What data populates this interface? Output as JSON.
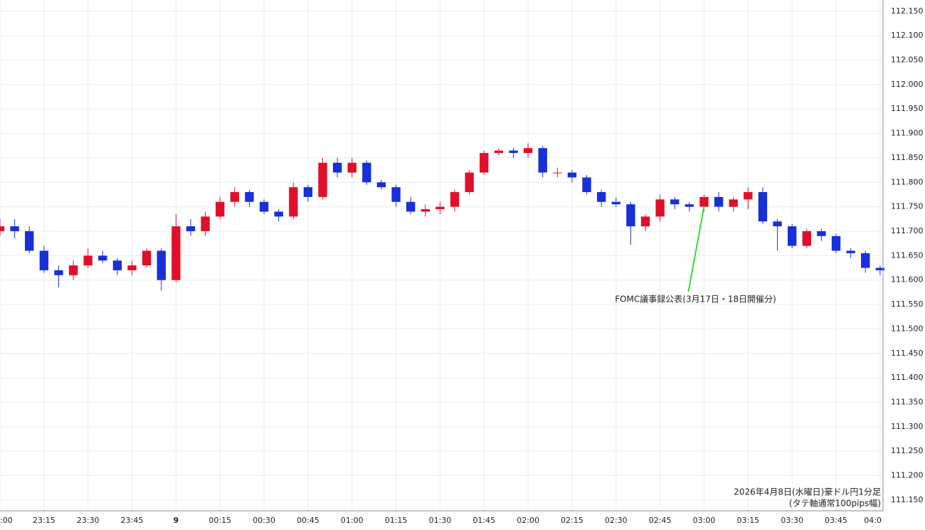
{
  "chart_data": {
    "type": "candlestick",
    "annotation": "FOMC議事録公表(3月17日・18日開催分)",
    "annotation_x": "03:00",
    "caption": [
      "2026年4月8日(水曜日)豪ドル円1分足",
      "(タテ軸通常100pips幅)"
    ],
    "up_color": "#e0102a",
    "down_color": "#1730d8",
    "annotation_color": "#33dd33",
    "grid": true,
    "x": [
      "23:00",
      "23:05",
      "23:10",
      "23:15",
      "23:20",
      "23:25",
      "23:30",
      "23:35",
      "23:40",
      "23:45",
      "23:50",
      "23:55",
      "00:00",
      "00:05",
      "00:10",
      "00:15",
      "00:20",
      "00:25",
      "00:30",
      "00:35",
      "00:40",
      "00:45",
      "00:50",
      "00:55",
      "01:00",
      "01:05",
      "01:10",
      "01:15",
      "01:20",
      "01:25",
      "01:30",
      "01:35",
      "01:40",
      "01:45",
      "01:50",
      "01:55",
      "02:00",
      "02:05",
      "02:10",
      "02:15",
      "02:20",
      "02:25",
      "02:30",
      "02:35",
      "02:40",
      "02:45",
      "02:50",
      "02:55",
      "03:00",
      "03:05",
      "03:10",
      "03:15",
      "03:20",
      "03:25",
      "03:30",
      "03:35",
      "03:40",
      "03:45",
      "03:50",
      "03:55",
      "04:00"
    ],
    "open": [
      111.7,
      111.71,
      111.7,
      111.66,
      111.62,
      111.61,
      111.63,
      111.65,
      111.64,
      111.62,
      111.63,
      111.66,
      111.6,
      111.71,
      111.7,
      111.73,
      111.76,
      111.78,
      111.76,
      111.74,
      111.73,
      111.79,
      111.77,
      111.84,
      111.82,
      111.84,
      111.8,
      111.79,
      111.76,
      111.74,
      111.745,
      111.75,
      111.78,
      111.82,
      111.86,
      111.865,
      111.86,
      111.87,
      111.82,
      111.82,
      111.81,
      111.78,
      111.76,
      111.755,
      111.71,
      111.73,
      111.765,
      111.755,
      111.75,
      111.77,
      111.75,
      111.765,
      111.78,
      111.72,
      111.71,
      111.67,
      111.7,
      111.69,
      111.66,
      111.655,
      111.625
    ],
    "high": [
      111.725,
      111.725,
      111.71,
      111.67,
      111.63,
      111.64,
      111.665,
      111.66,
      111.645,
      111.64,
      111.665,
      111.665,
      111.735,
      111.725,
      111.74,
      111.77,
      111.79,
      111.785,
      111.765,
      111.745,
      111.8,
      111.795,
      111.85,
      111.85,
      111.85,
      111.845,
      111.805,
      111.795,
      111.77,
      111.755,
      111.76,
      111.785,
      111.825,
      111.865,
      111.87,
      111.87,
      111.88,
      111.875,
      111.83,
      111.825,
      111.815,
      111.785,
      111.77,
      111.76,
      111.735,
      111.775,
      111.77,
      111.76,
      111.775,
      111.78,
      111.77,
      111.79,
      111.79,
      111.725,
      111.715,
      111.705,
      111.705,
      111.695,
      111.665,
      111.66,
      111.63
    ],
    "low": [
      111.69,
      111.685,
      111.655,
      111.615,
      111.585,
      111.6,
      111.625,
      111.635,
      111.61,
      111.61,
      111.625,
      111.578,
      111.595,
      111.69,
      111.69,
      111.725,
      111.75,
      111.75,
      111.735,
      111.72,
      111.725,
      111.76,
      111.765,
      111.81,
      111.81,
      111.795,
      111.785,
      111.75,
      111.735,
      111.73,
      111.735,
      111.74,
      111.775,
      111.815,
      111.855,
      111.85,
      111.85,
      111.81,
      111.81,
      111.8,
      111.775,
      111.75,
      111.75,
      111.672,
      111.7,
      111.72,
      111.745,
      111.74,
      111.74,
      111.74,
      111.74,
      111.745,
      111.715,
      111.66,
      111.665,
      111.665,
      111.68,
      111.655,
      111.645,
      111.615,
      111.61
    ],
    "close": [
      111.71,
      111.7,
      111.66,
      111.62,
      111.61,
      111.63,
      111.65,
      111.64,
      111.62,
      111.63,
      111.66,
      111.6,
      111.71,
      111.7,
      111.73,
      111.76,
      111.78,
      111.76,
      111.74,
      111.73,
      111.79,
      111.77,
      111.84,
      111.82,
      111.84,
      111.8,
      111.79,
      111.76,
      111.74,
      111.745,
      111.75,
      111.78,
      111.82,
      111.86,
      111.865,
      111.86,
      111.87,
      111.82,
      111.82,
      111.81,
      111.78,
      111.76,
      111.755,
      111.71,
      111.73,
      111.765,
      111.755,
      111.75,
      111.77,
      111.75,
      111.765,
      111.78,
      111.72,
      111.71,
      111.67,
      111.7,
      111.69,
      111.66,
      111.655,
      111.625,
      111.62
    ],
    "xticks": [
      {
        "value": "23:00",
        "label": ":00"
      },
      "23:15",
      "23:30",
      "23:45",
      {
        "value": "00:00",
        "label": "9"
      },
      "00:15",
      "00:30",
      "00:45",
      "01:00",
      "01:15",
      "01:30",
      "01:45",
      "02:00",
      "02:15",
      "02:30",
      "02:45",
      "03:00",
      "03:15",
      "03:30",
      "03:45",
      {
        "value": "04:00",
        "label": "04:0"
      }
    ],
    "xlim": [
      "23:00",
      "04:01"
    ],
    "ylim": [
      111.128,
      112.173
    ],
    "yticks": [
      {
        "value": 111.15,
        "label": "111.150"
      },
      {
        "value": 111.2,
        "label": "111.200"
      },
      {
        "value": 111.25,
        "label": "111.250"
      },
      {
        "value": 111.3,
        "label": "111.300"
      },
      {
        "value": 111.35,
        "label": "111.350"
      },
      {
        "value": 111.4,
        "label": "111.400"
      },
      {
        "value": 111.45,
        "label": "111.450"
      },
      {
        "value": 111.5,
        "label": "111.500"
      },
      {
        "value": 111.55,
        "label": "111.550"
      },
      {
        "value": 111.6,
        "label": "111.600"
      },
      {
        "value": 111.65,
        "label": "111.650"
      },
      {
        "value": 111.7,
        "label": "111.700"
      },
      {
        "value": 111.75,
        "label": "111.750"
      },
      {
        "value": 111.8,
        "label": "111.800"
      },
      {
        "value": 111.85,
        "label": "111.850"
      },
      {
        "value": 111.9,
        "label": "111.900"
      },
      {
        "value": 111.95,
        "label": "111.950"
      },
      {
        "value": 112.0,
        "label": "112.000"
      },
      {
        "value": 112.05,
        "label": "112.050"
      },
      {
        "value": 112.1,
        "label": "112.100"
      },
      {
        "value": 112.15,
        "label": "112.150"
      }
    ]
  }
}
